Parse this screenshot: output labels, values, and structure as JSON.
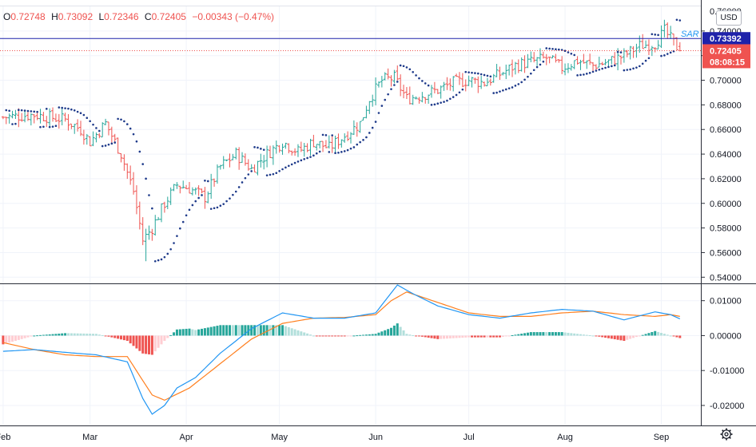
{
  "legend": {
    "open_label": "O",
    "open": "0.72748",
    "high_label": "H",
    "high": "0.73092",
    "low_label": "L",
    "low": "0.72346",
    "close_label": "C",
    "close": "0.72405",
    "change": "−0.00343 (−0.47%)"
  },
  "currency": "USD",
  "sar_label": "SAR",
  "price_axis": {
    "ticks": [
      "0.74000",
      "0.72000",
      "0.70000",
      "0.68000",
      "0.66000",
      "0.64000",
      "0.62000",
      "0.60000",
      "0.58000",
      "0.56000",
      "0.54000"
    ],
    "partial_top_tick": "0.76000",
    "blue_line_label": "0.73392",
    "last_price_label": "0.72405",
    "countdown": "08:08:15"
  },
  "macd_axis": {
    "ticks": [
      "0.01000",
      "0.00000",
      "-0.01000",
      "-0.02000"
    ]
  },
  "time_axis": {
    "labels": [
      "Feb",
      "Mar",
      "Apr",
      "May",
      "Jun",
      "Jul",
      "Aug",
      "Sep"
    ]
  },
  "colors": {
    "up": "#26a69a",
    "down": "#ef5350",
    "sar": "#1e3a8a",
    "blue_line": "#1e22aa",
    "macd_line": "#2196f3",
    "signal_line": "#ff7f1e",
    "hist_up_strong": "#26a69a",
    "hist_up_weak": "#b2dfdb",
    "hist_down_strong": "#ef5350",
    "hist_down_weak": "#ffcdd2",
    "last_price": "#ef5350",
    "blue_label": "#1e22aa"
  },
  "chart_data": [
    {
      "type": "candlestick",
      "title": "",
      "ylim": [
        0.535,
        0.76
      ],
      "horizontal_line": 0.73392,
      "last_price": 0.72405,
      "x_range_days": [
        -1,
        225
      ],
      "month_starts": {
        "Feb": 0,
        "Mar": 28,
        "Apr": 59,
        "May": 89,
        "Jun": 120,
        "Jul": 150,
        "Aug": 181,
        "Sep": 212
      },
      "series": [
        {
          "name": "SAR",
          "values": []
        }
      ],
      "anchor_days": [
        0,
        10,
        20,
        25,
        28,
        33,
        38,
        42,
        45,
        48,
        52,
        56,
        60,
        65,
        70,
        75,
        80,
        85,
        90,
        95,
        100,
        105,
        110,
        115,
        118,
        122,
        126,
        130,
        135,
        140,
        145,
        150,
        155,
        160,
        165,
        170,
        175,
        180,
        185,
        190,
        195,
        200,
        205,
        210,
        213,
        218
      ],
      "anchor_closes": [
        0.67,
        0.672,
        0.668,
        0.66,
        0.65,
        0.665,
        0.64,
        0.61,
        0.57,
        0.58,
        0.6,
        0.615,
        0.612,
        0.605,
        0.63,
        0.64,
        0.628,
        0.64,
        0.65,
        0.642,
        0.65,
        0.645,
        0.655,
        0.665,
        0.685,
        0.7,
        0.702,
        0.685,
        0.688,
        0.692,
        0.698,
        0.7,
        0.698,
        0.705,
        0.712,
        0.715,
        0.718,
        0.71,
        0.716,
        0.712,
        0.715,
        0.72,
        0.728,
        0.73,
        0.74,
        0.724
      ]
    },
    {
      "type": "histogram+line",
      "ylim": [
        -0.0255,
        0.0145
      ],
      "series": [
        {
          "name": "MACD",
          "values": []
        },
        {
          "name": "Signal",
          "values": []
        }
      ],
      "macd_days": [
        0,
        10,
        20,
        30,
        40,
        45,
        48,
        52,
        56,
        62,
        70,
        80,
        90,
        100,
        110,
        120,
        127,
        132,
        140,
        150,
        160,
        170,
        180,
        190,
        200,
        210,
        215,
        218
      ],
      "macd_vals": [
        -0.0045,
        -0.004,
        -0.0048,
        -0.0055,
        -0.0075,
        -0.018,
        -0.0225,
        -0.02,
        -0.015,
        -0.012,
        -0.005,
        0.002,
        0.0065,
        0.005,
        0.005,
        0.0065,
        0.0145,
        0.012,
        0.0085,
        0.006,
        0.005,
        0.0065,
        0.0075,
        0.007,
        0.0045,
        0.0068,
        0.006,
        0.0048
      ],
      "signal_days": [
        0,
        10,
        20,
        30,
        40,
        48,
        52,
        60,
        70,
        80,
        90,
        100,
        110,
        120,
        125,
        130,
        140,
        150,
        160,
        170,
        180,
        190,
        200,
        210,
        215,
        218
      ],
      "signal_vals": [
        -0.002,
        -0.004,
        -0.0055,
        -0.006,
        -0.006,
        -0.017,
        -0.0185,
        -0.015,
        -0.008,
        -0.001,
        0.0035,
        0.005,
        0.0052,
        0.006,
        0.01,
        0.0125,
        0.0095,
        0.0065,
        0.0055,
        0.0055,
        0.0065,
        0.007,
        0.006,
        0.0055,
        0.006,
        0.0055
      ]
    }
  ]
}
